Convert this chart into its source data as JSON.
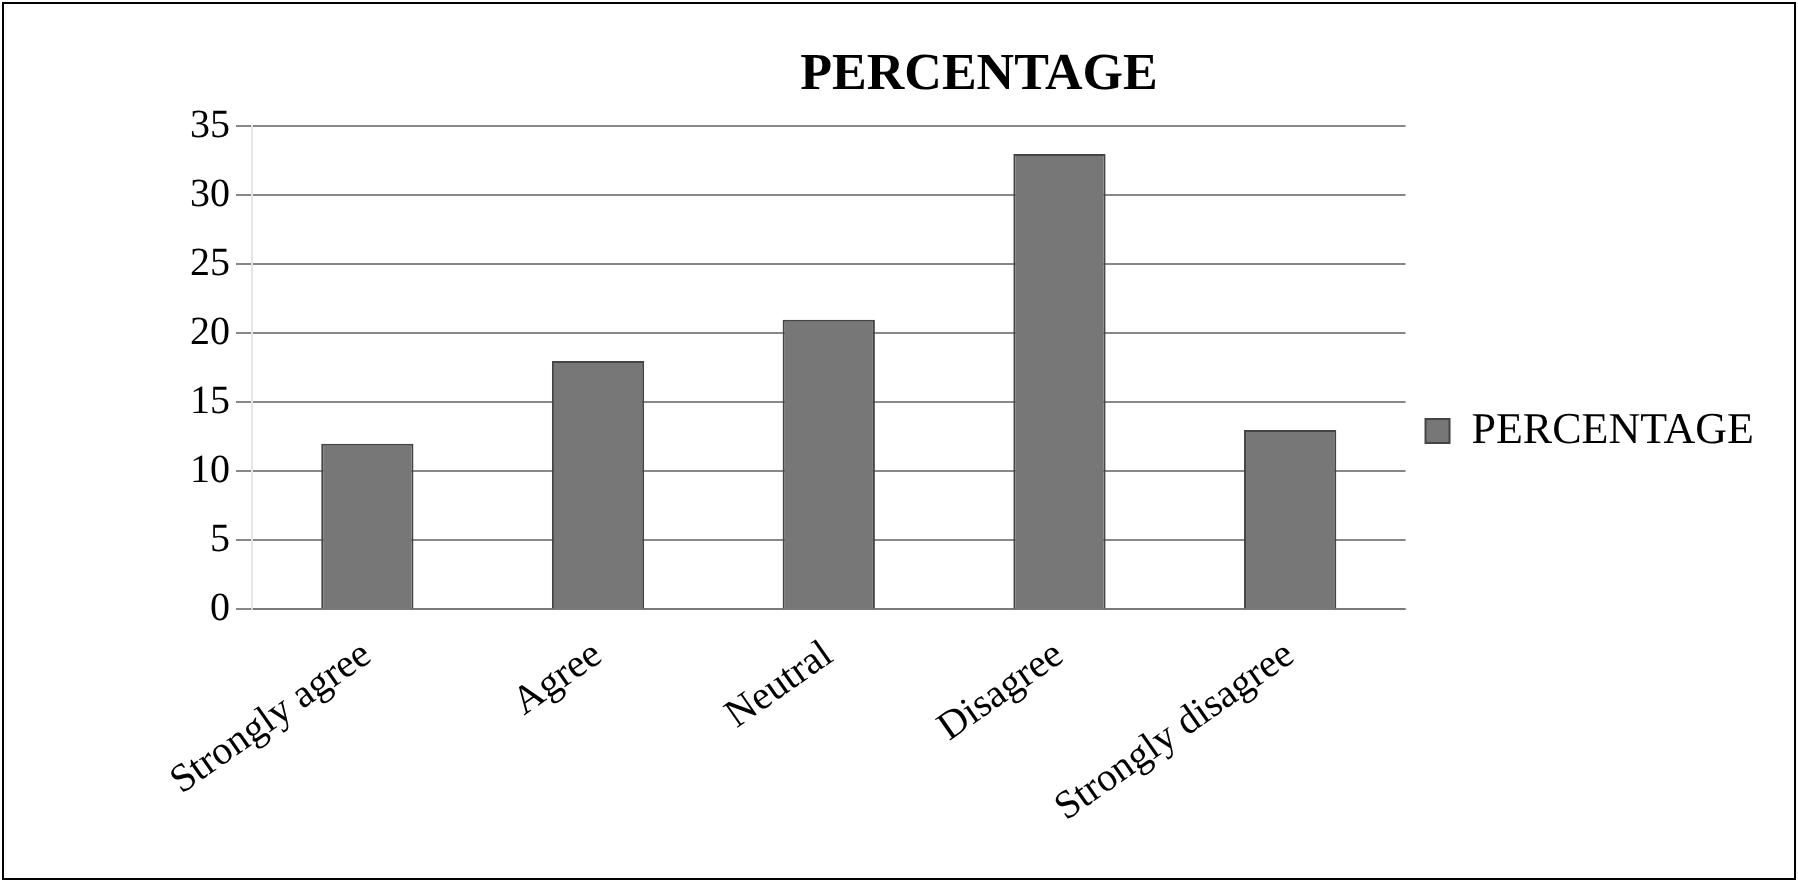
{
  "chart_data": {
    "type": "bar",
    "title": "PERCENTAGE",
    "categories": [
      "Strongly agree",
      "Agree",
      "Neutral",
      "Disagree",
      "Strongly disagree"
    ],
    "series": [
      {
        "name": "PERCENTAGE",
        "color": "#777777",
        "values": [
          12,
          18,
          21,
          33,
          13
        ]
      }
    ],
    "ylim": [
      0,
      35
    ],
    "yticks": [
      0,
      5,
      10,
      15,
      20,
      25,
      30,
      35
    ],
    "grid": "y",
    "legend": "right"
  }
}
